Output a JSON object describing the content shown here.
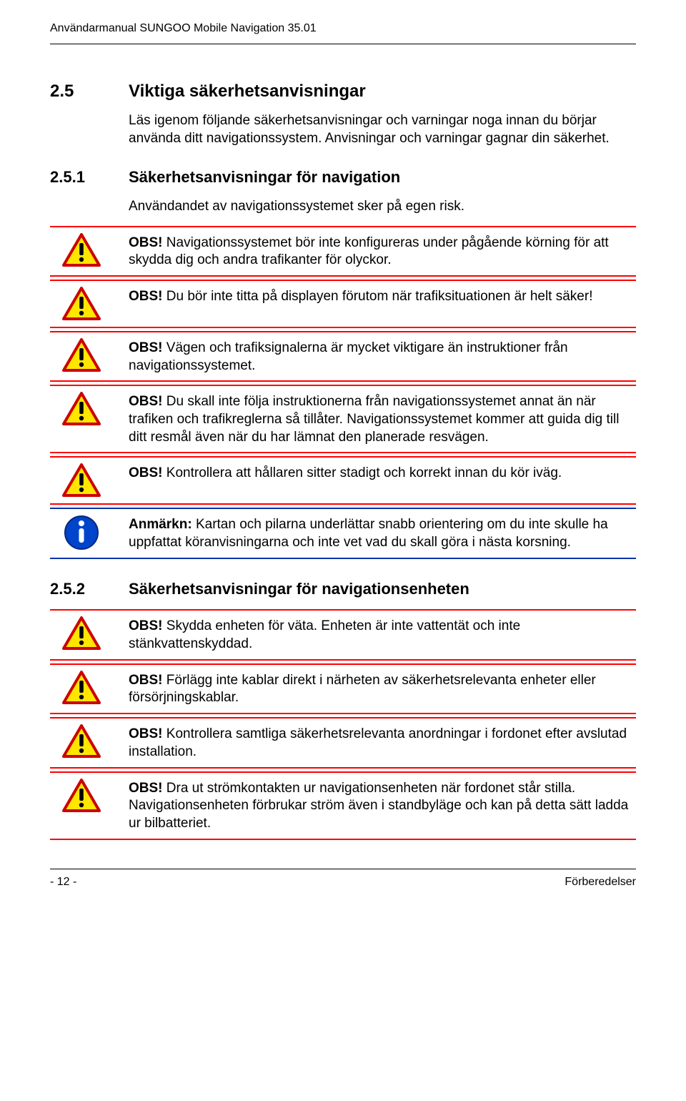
{
  "header": "Användarmanual SUNGOO Mobile Navigation 35.01",
  "section1": {
    "num": "2.5",
    "title": "Viktiga säkerhetsanvisningar"
  },
  "intro1": "Läs igenom följande säkerhetsanvisningar och varningar noga innan du börjar använda ditt navigationssystem. Anvisningar och varningar gagnar din säkerhet.",
  "section2": {
    "num": "2.5.1",
    "title": "Säkerhetsanvisningar för navigation"
  },
  "intro2": "Användandet av navigationssystemet sker på egen risk.",
  "warnings1": [
    {
      "type": "obs",
      "bold": "OBS!",
      "text": " Navigationssystemet bör inte konfigureras under pågående körning för att skydda dig och andra trafikanter för olyckor."
    },
    {
      "type": "obs",
      "bold": "OBS!",
      "text": " Du bör inte titta på displayen förutom när trafiksituationen är helt säker!"
    },
    {
      "type": "obs",
      "bold": "OBS!",
      "text": " Vägen och trafiksignalerna är mycket viktigare än instruktioner från navigationssystemet."
    },
    {
      "type": "obs",
      "bold": "OBS!",
      "text": " Du skall inte följa instruktionerna från navigationssystemet annat än när trafiken och trafikreglerna så tillåter. Navigationssystemet kommer att guida dig till ditt resmål även när du har lämnat den planerade resvägen."
    },
    {
      "type": "obs",
      "bold": "OBS!",
      "text": " Kontrollera att hållaren sitter stadigt och korrekt innan du kör iväg."
    },
    {
      "type": "note",
      "bold": "Anmärkn:",
      "text": " Kartan och pilarna underlättar snabb orientering om du inte skulle ha uppfattat köranvisningarna och inte vet vad du skall göra i nästa korsning."
    }
  ],
  "section3": {
    "num": "2.5.2",
    "title": "Säkerhetsanvisningar för navigationsenheten"
  },
  "warnings2": [
    {
      "type": "obs",
      "bold": "OBS!",
      "text": " Skydda enheten för väta. Enheten är inte vattentät och inte stänkvattenskyddad."
    },
    {
      "type": "obs",
      "bold": "OBS!",
      "text": " Förlägg inte kablar direkt i närheten av säkerhetsrelevanta enheter eller försörjningskablar."
    },
    {
      "type": "obs",
      "bold": "OBS!",
      "text": " Kontrollera samtliga säkerhetsrelevanta anordningar i fordonet efter avslutad installation."
    },
    {
      "type": "obs",
      "bold": "OBS!",
      "text": " Dra ut strömkontakten ur navigationsenheten när fordonet står stilla. Navigationsenheten förbrukar ström även i standbyläge och kan på detta sätt ladda ur bilbatteriet."
    }
  ],
  "footer": {
    "left": "- 12 -",
    "right": "Förberedelser"
  },
  "colors": {
    "red_rule": "#ff0000",
    "blue_rule": "#0033aa",
    "triangle_border": "#cc0000",
    "triangle_fill": "#ffe600",
    "circle_fill": "#0044cc"
  }
}
